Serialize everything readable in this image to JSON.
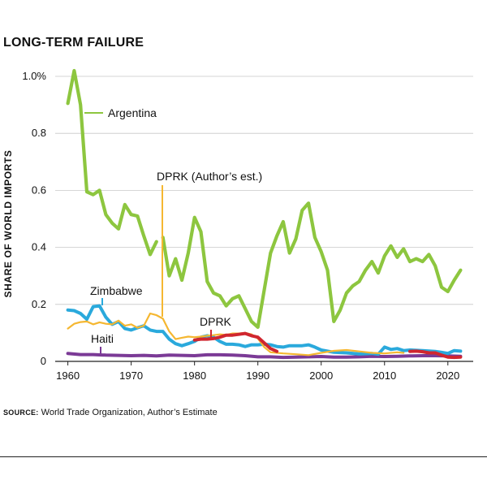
{
  "title": "LONG-TERM FAILURE",
  "source_label": "SOURCE:",
  "source_text": "World Trade Organization, Author’s Estimate",
  "chart_data": {
    "type": "line",
    "ylabel": "SHARE OF WORLD IMPORTS",
    "xlabel": "",
    "xlim": [
      1958,
      2024
    ],
    "ylim": [
      0,
      1.0
    ],
    "x_ticks": [
      1960,
      1970,
      1980,
      1990,
      2000,
      2010,
      2020
    ],
    "x_tick_labels": [
      "1960",
      "1970",
      "1980",
      "1990",
      "2000",
      "2010",
      "2020"
    ],
    "y_ticks": [
      0,
      0.2,
      0.4,
      0.6,
      0.8,
      1.0
    ],
    "y_tick_labels": [
      "0",
      "0.2",
      "0.4",
      "0.6",
      "0.8",
      "1.0%"
    ],
    "grid": "horizontal",
    "series": [
      {
        "name": "Haiti",
        "color": "#7b3a96",
        "x": [
          1960,
          1962,
          1964,
          1966,
          1968,
          1970,
          1972,
          1974,
          1976,
          1978,
          1980,
          1982,
          1984,
          1986,
          1988,
          1990,
          1992,
          1994,
          1996,
          1998,
          2000,
          2002,
          2004,
          2006,
          2008,
          2010,
          2012,
          2014,
          2016,
          2018,
          2020,
          2022
        ],
        "y": [
          0.028,
          0.024,
          0.024,
          0.022,
          0.021,
          0.02,
          0.021,
          0.019,
          0.022,
          0.021,
          0.02,
          0.023,
          0.023,
          0.022,
          0.02,
          0.016,
          0.016,
          0.014,
          0.015,
          0.016,
          0.017,
          0.015,
          0.015,
          0.016,
          0.018,
          0.017,
          0.018,
          0.019,
          0.02,
          0.02,
          0.019,
          0.018
        ]
      },
      {
        "name": "Zimbabwe",
        "color": "#2aa9dc",
        "x": [
          1960,
          1961,
          1962,
          1963,
          1964,
          1965,
          1966,
          1967,
          1968,
          1969,
          1970,
          1971,
          1972,
          1973,
          1974,
          1975,
          1976,
          1977,
          1978,
          1979,
          1980,
          1981,
          1982,
          1983,
          1984,
          1985,
          1986,
          1987,
          1988,
          1989,
          1990,
          1991,
          1992,
          1993,
          1994,
          1995,
          1996,
          1997,
          1998,
          1999,
          2000,
          2002,
          2004,
          2006,
          2008,
          2009,
          2010,
          2011,
          2012,
          2013,
          2014,
          2016,
          2018,
          2019,
          2020,
          2021,
          2022
        ],
        "y": [
          0.18,
          0.178,
          0.168,
          0.148,
          0.192,
          0.195,
          0.155,
          0.13,
          0.14,
          0.115,
          0.11,
          0.118,
          0.125,
          0.11,
          0.105,
          0.105,
          0.078,
          0.062,
          0.055,
          0.062,
          0.07,
          0.085,
          0.09,
          0.085,
          0.07,
          0.06,
          0.06,
          0.058,
          0.052,
          0.058,
          0.058,
          0.06,
          0.058,
          0.052,
          0.05,
          0.055,
          0.055,
          0.055,
          0.058,
          0.05,
          0.04,
          0.032,
          0.03,
          0.026,
          0.028,
          0.025,
          0.05,
          0.042,
          0.045,
          0.038,
          0.04,
          0.038,
          0.035,
          0.032,
          0.028,
          0.038,
          0.036
        ]
      },
      {
        "name": "DPRK (Author’s est.)",
        "color": "#f5b731",
        "x": [
          1960,
          1961,
          1962,
          1963,
          1964,
          1965,
          1966,
          1967,
          1968,
          1969,
          1970,
          1971,
          1972,
          1973,
          1974,
          1975,
          1976,
          1977,
          1978,
          1979,
          1980,
          1981,
          1982,
          1983,
          1984,
          1985,
          1986,
          1987,
          1988,
          1989,
          1990,
          1991,
          1992,
          1994,
          1996,
          1998,
          2000,
          2002,
          2004,
          2006,
          2008,
          2010,
          2012,
          2013
        ],
        "y": [
          0.115,
          0.132,
          0.138,
          0.14,
          0.13,
          0.137,
          0.132,
          0.13,
          0.143,
          0.125,
          0.13,
          0.118,
          0.125,
          0.168,
          0.162,
          0.15,
          0.105,
          0.078,
          0.083,
          0.087,
          0.085,
          0.087,
          0.09,
          0.092,
          0.095,
          0.093,
          0.098,
          0.098,
          0.1,
          0.095,
          0.08,
          0.05,
          0.032,
          0.028,
          0.025,
          0.022,
          0.03,
          0.037,
          0.04,
          0.035,
          0.03,
          0.028,
          0.032,
          0.03
        ]
      },
      {
        "name": "DPRK",
        "color": "#d0262f",
        "x": [
          1980,
          1981,
          1982,
          1983,
          1984,
          1985,
          1986,
          1987,
          1988,
          1989,
          1990,
          1991,
          1992,
          1993
        ],
        "y": [
          0.075,
          0.078,
          0.078,
          0.08,
          0.085,
          0.092,
          0.092,
          0.095,
          0.098,
          0.09,
          0.085,
          0.065,
          0.045,
          0.035
        ],
        "x2": [
          2014,
          2015,
          2016,
          2017,
          2018,
          2019,
          2020,
          2021,
          2022
        ],
        "y2": [
          0.035,
          0.036,
          0.034,
          0.03,
          0.03,
          0.022,
          0.015,
          0.014,
          0.015
        ]
      },
      {
        "name": "Argentina",
        "color": "#8dc63f",
        "x": [
          1960,
          1961,
          1962,
          1963,
          1964,
          1965,
          1966,
          1967,
          1968,
          1969,
          1970,
          1971,
          1972,
          1973,
          1974
        ],
        "y": [
          0.905,
          1.02,
          0.9,
          0.595,
          0.585,
          0.6,
          0.515,
          0.485,
          0.465,
          0.55,
          0.515,
          0.51,
          0.44,
          0.375,
          0.42
        ],
        "x2": [
          1975,
          1976,
          1977,
          1978,
          1979,
          1980,
          1981,
          1982,
          1983,
          1984,
          1985,
          1986,
          1987,
          1988,
          1989,
          1990,
          1991,
          1992,
          1993,
          1994,
          1995,
          1996,
          1997,
          1998,
          1999,
          2000,
          2001,
          2002,
          2003,
          2004,
          2005,
          2006,
          2007,
          2008,
          2009,
          2010,
          2011,
          2012,
          2013,
          2014,
          2015,
          2016,
          2017,
          2018,
          2019,
          2020,
          2021,
          2022
        ],
        "y2": [
          0.435,
          0.3,
          0.36,
          0.285,
          0.38,
          0.505,
          0.455,
          0.28,
          0.24,
          0.23,
          0.195,
          0.22,
          0.23,
          0.185,
          0.14,
          0.12,
          0.25,
          0.38,
          0.44,
          0.49,
          0.38,
          0.43,
          0.53,
          0.555,
          0.435,
          0.385,
          0.32,
          0.14,
          0.18,
          0.24,
          0.265,
          0.28,
          0.32,
          0.35,
          0.31,
          0.37,
          0.405,
          0.365,
          0.395,
          0.35,
          0.36,
          0.35,
          0.375,
          0.335,
          0.26,
          0.245,
          0.285,
          0.32
        ]
      }
    ],
    "annotations": [
      {
        "series": "Argentina",
        "text": "Argentina"
      },
      {
        "series": "DPRK (Author’s est.)",
        "text": "DPRK (Author’s est.)"
      },
      {
        "series": "Zimbabwe",
        "text": "Zimbabwe"
      },
      {
        "series": "DPRK",
        "text": "DPRK"
      },
      {
        "series": "Haiti",
        "text": "Haiti"
      }
    ]
  }
}
